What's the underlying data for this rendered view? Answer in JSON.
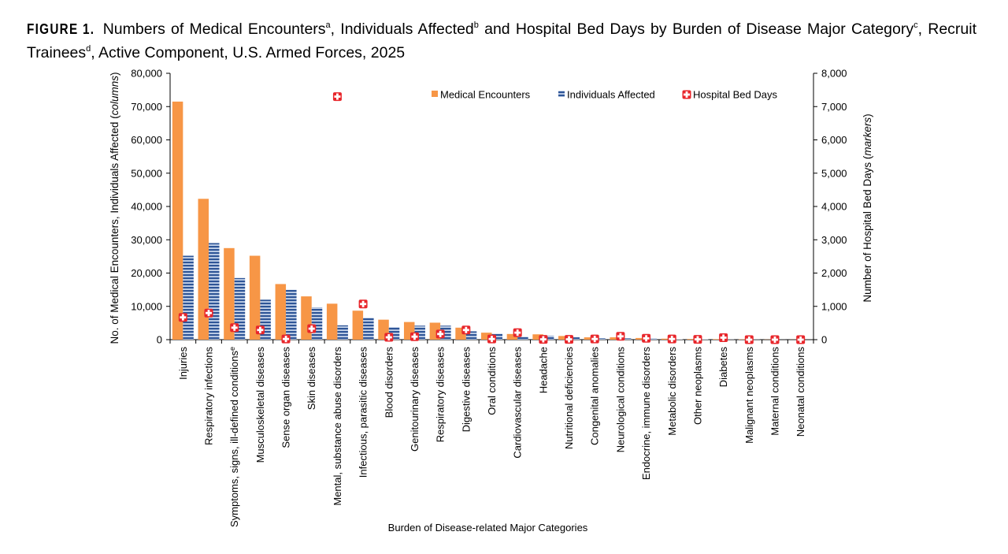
{
  "title": {
    "label": "FIGURE 1.",
    "parts": [
      {
        "text": " Numbers of Medical Encounters"
      },
      {
        "sup": "a"
      },
      {
        "text": ", Individuals Affected"
      },
      {
        "sup": "b"
      },
      {
        "text": " and Hospital Bed Days by Burden of Disease Major Category"
      },
      {
        "sup": "c"
      },
      {
        "text": ", Recruit Trainees"
      },
      {
        "sup": "d"
      },
      {
        "text": ", Active Component, U.S. Armed Forces, 2025"
      }
    ]
  },
  "chart_data": {
    "type": "bar",
    "xlabel": "Burden of Disease-related Major Categories",
    "ylabel_left": "No. of Medical Encounters, Individuals Affected (columns)",
    "ylabel_right": "Number of Hospital Bed Days (markers)",
    "ylim_left": [
      0,
      80000
    ],
    "ylim_right": [
      0,
      8000
    ],
    "yticks_left": [
      "0",
      "10,000",
      "20,000",
      "30,000",
      "40,000",
      "50,000",
      "60,000",
      "70,000",
      "80,000"
    ],
    "yticks_right": [
      "0",
      "1,000",
      "2,000",
      "3,000",
      "4,000",
      "5,000",
      "6,000",
      "7,000",
      "8,000"
    ],
    "legend_position": "top-right",
    "categories": [
      "Injuries",
      "Respiratory infections",
      "Symptoms, signs, ill-defined conditions",
      "Musculoskeletal diseases",
      "Sense organ diseases",
      "Skin diseases",
      "Mental, substance abuse disorders",
      "Infectious, parasitic diseases",
      "Blood disorders",
      "Genitourinary diseases",
      "Respiratory diseases",
      "Digestive diseases",
      "Oral conditions",
      "Cardiovascular diseases",
      "Headache",
      "Nutritional deficiencies",
      "Congenital anomalies",
      "Neurological conditions",
      "Endocrine, immune disorders",
      "Metabolic disorders",
      "Other neoplasms",
      "Diabetes",
      "Malignant neoplasms",
      "Maternal conditions",
      "Neonatal conditions"
    ],
    "category_superscripts": {
      "Symptoms, signs, ill-defined conditions": "e"
    },
    "series": [
      {
        "name": "Medical Encounters",
        "type": "bar",
        "axis": "left",
        "color": "#F79646",
        "values": [
          71500,
          42300,
          27500,
          25200,
          16700,
          13000,
          10800,
          8700,
          6000,
          5300,
          5100,
          3600,
          2100,
          1700,
          1600,
          1100,
          700,
          700,
          500,
          300,
          200,
          150,
          100,
          50,
          30
        ]
      },
      {
        "name": "Individuals Affected",
        "type": "bar",
        "axis": "left",
        "color": "#4F81BD",
        "values": [
          25200,
          29000,
          18500,
          12000,
          15000,
          9700,
          4300,
          6600,
          3800,
          4200,
          4200,
          2500,
          1800,
          900,
          1200,
          700,
          400,
          400,
          300,
          100,
          100,
          60,
          50,
          20,
          10
        ]
      },
      {
        "name": "Hospital Bed Days",
        "type": "marker",
        "axis": "right",
        "color": "#E8262B",
        "values": [
          670,
          800,
          360,
          290,
          20,
          330,
          7300,
          1070,
          70,
          90,
          170,
          290,
          20,
          210,
          10,
          10,
          20,
          100,
          40,
          20,
          10,
          60,
          0,
          0,
          0
        ]
      }
    ]
  }
}
